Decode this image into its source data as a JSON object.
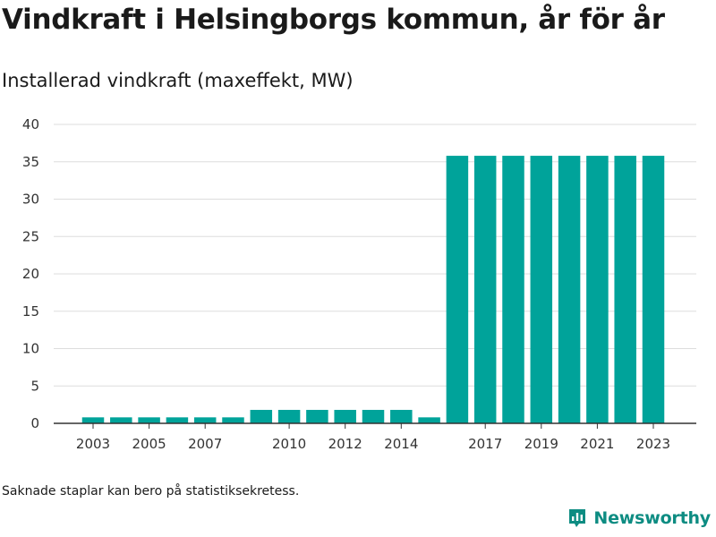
{
  "title": "Vindkraft i Helsingborgs kommun, år för år",
  "footnote": "Saknade staplar kan bero på statistiksekretess.",
  "brand": {
    "name": "Newsworthy",
    "icon": "newsworthy-logo-icon",
    "color": "#0d8c82"
  },
  "chart_data": {
    "type": "bar",
    "title": "Installerad vindkraft (maxeffekt, MW)",
    "categories": [
      "2003",
      "2004",
      "2005",
      "2006",
      "2007",
      "2008",
      "2009",
      "2010",
      "2011",
      "2012",
      "2013",
      "2014",
      "2015",
      "2016",
      "2017",
      "2018",
      "2019",
      "2020",
      "2021",
      "2022",
      "2023"
    ],
    "values": [
      0.8,
      0.8,
      0.8,
      0.8,
      0.8,
      0.8,
      1.8,
      1.8,
      1.8,
      1.8,
      1.8,
      1.8,
      0.8,
      35.8,
      35.8,
      35.8,
      35.8,
      35.8,
      35.8,
      35.8,
      35.8
    ],
    "x_tick_labels": [
      "2003",
      "2005",
      "2007",
      "2010",
      "2012",
      "2014",
      "2017",
      "2019",
      "2021",
      "2023"
    ],
    "ylim": [
      0,
      40
    ],
    "y_ticks": [
      0,
      5,
      10,
      15,
      20,
      25,
      30,
      35,
      40
    ],
    "xlabel": "",
    "ylabel": "",
    "grid": true,
    "bar_color": "#00a39a"
  }
}
